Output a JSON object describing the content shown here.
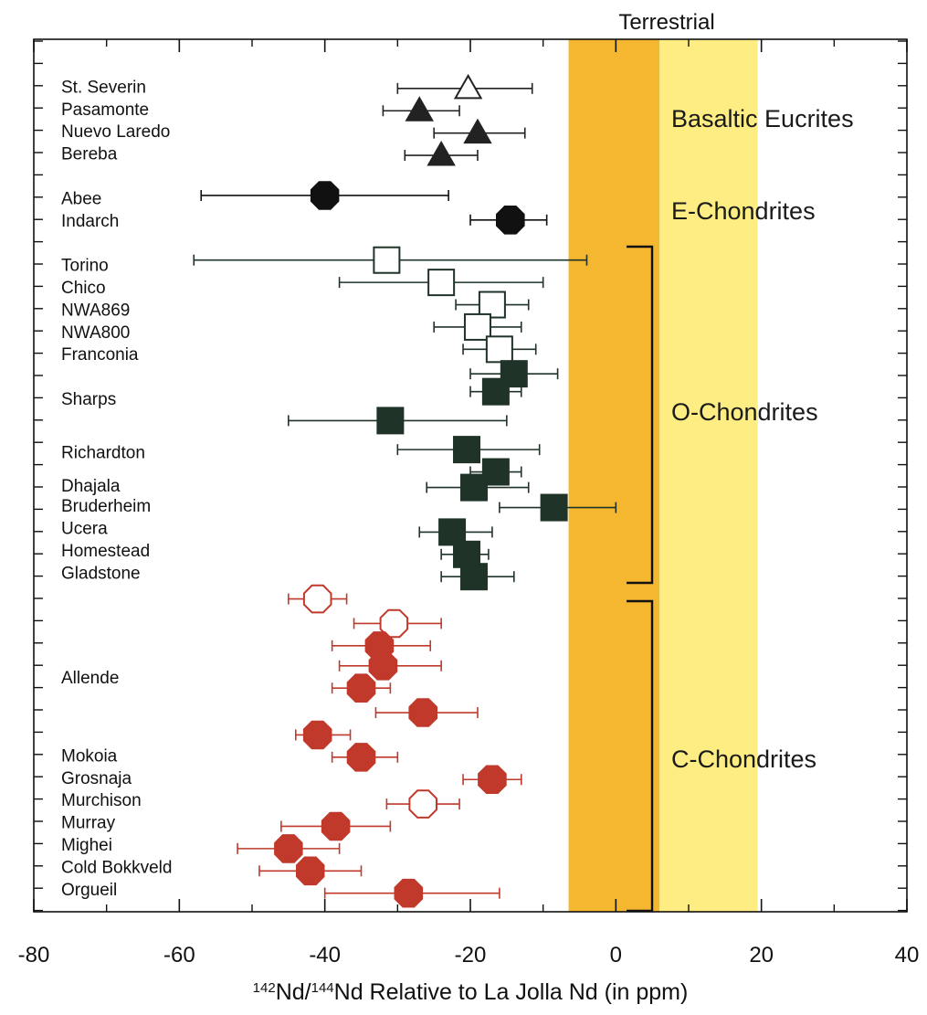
{
  "chart_data": {
    "type": "scatter",
    "title": "",
    "xlabel_prefix_mass1": "142",
    "xlabel_mid": "Nd/",
    "xlabel_prefix_mass2": "144",
    "xlabel_rest": "Nd Relative to La Jolla Nd (in ppm)",
    "xlim": [
      -80,
      40
    ],
    "x_ticks": [
      -80,
      -60,
      -40,
      -20,
      0,
      20,
      40
    ],
    "grid": false,
    "bands": [
      {
        "x_from": -6.5,
        "x_to": 6,
        "color": "#f5b730",
        "label": "Terrestrial"
      },
      {
        "x_from": 6,
        "x_to": 19.5,
        "color": "#fded83",
        "label": ""
      }
    ],
    "group_labels": [
      "Basaltic Eucrites",
      "E-Chondrites",
      "O-Chondrites",
      "C-Chondrites"
    ],
    "sample_labels": [
      {
        "text": "St. Severin",
        "row": 1
      },
      {
        "text": "Pasamonte",
        "row": 2
      },
      {
        "text": "Nuevo Laredo",
        "row": 3
      },
      {
        "text": "Bereba",
        "row": 4
      },
      {
        "text": "Abee",
        "row": 6
      },
      {
        "text": "Indarch",
        "row": 7
      },
      {
        "text": "Torino",
        "row": 9
      },
      {
        "text": "Chico",
        "row": 10
      },
      {
        "text": "NWA869",
        "row": 11
      },
      {
        "text": "NWA800",
        "row": 12
      },
      {
        "text": "Franconia",
        "row": 13
      },
      {
        "text": "Sharps",
        "row": 15
      },
      {
        "text": "Richardton",
        "row": 17.4
      },
      {
        "text": "Dhajala",
        "row": 18.9
      },
      {
        "text": "Bruderheim",
        "row": 19.8
      },
      {
        "text": "Ucera",
        "row": 20.8
      },
      {
        "text": "Homestead",
        "row": 21.8
      },
      {
        "text": "Gladstone",
        "row": 22.8
      },
      {
        "text": "Allende",
        "row": 27.5
      },
      {
        "text": "Mokoia",
        "row": 31
      },
      {
        "text": "Grosnaja",
        "row": 32
      },
      {
        "text": "Murchison",
        "row": 33
      },
      {
        "text": "Murray",
        "row": 34
      },
      {
        "text": "Mighei",
        "row": 35
      },
      {
        "text": "Cold Bokkveld",
        "row": 36
      },
      {
        "text": "Orgueil",
        "row": 37
      }
    ],
    "series": [
      {
        "group": "Basaltic Eucrites",
        "marker": "triangle",
        "color": "#222222",
        "points": [
          {
            "row": 1.1,
            "x": -20.3,
            "lo": -30,
            "hi": -11.5,
            "filled": false
          },
          {
            "row": 2.1,
            "x": -27,
            "lo": -32,
            "hi": -21.5,
            "filled": true
          },
          {
            "row": 3.1,
            "x": -19,
            "lo": -25,
            "hi": -12.5,
            "filled": true
          },
          {
            "row": 4.1,
            "x": -24,
            "lo": -29,
            "hi": -19,
            "filled": true
          }
        ]
      },
      {
        "group": "E-Chondrites",
        "marker": "octagon",
        "color": "#111111",
        "points": [
          {
            "row": 5.9,
            "x": -40,
            "lo": -57,
            "hi": -23,
            "filled": true
          },
          {
            "row": 7.0,
            "x": -14.5,
            "lo": -20,
            "hi": -9.5,
            "filled": true
          }
        ]
      },
      {
        "group": "O-Chondrites",
        "marker": "square",
        "color": "#1f3328",
        "points": [
          {
            "row": 8.8,
            "x": -31.5,
            "lo": -58,
            "hi": -4,
            "filled": false
          },
          {
            "row": 9.8,
            "x": -24,
            "lo": -38,
            "hi": -10,
            "filled": false
          },
          {
            "row": 10.8,
            "x": -17,
            "lo": -22,
            "hi": -12,
            "filled": false
          },
          {
            "row": 11.8,
            "x": -19,
            "lo": -25,
            "hi": -13,
            "filled": false
          },
          {
            "row": 12.8,
            "x": -16,
            "lo": -21,
            "hi": -11,
            "filled": false
          },
          {
            "row": 13.9,
            "x": -14,
            "lo": -20,
            "hi": -8,
            "filled": true
          },
          {
            "row": 14.7,
            "x": -16.5,
            "lo": -20,
            "hi": -13,
            "filled": true
          },
          {
            "row": 16.0,
            "x": -31,
            "lo": -45,
            "hi": -15,
            "filled": true
          },
          {
            "row": 17.3,
            "x": -20.5,
            "lo": -30,
            "hi": -10.5,
            "filled": true
          },
          {
            "row": 18.3,
            "x": -16.5,
            "lo": -20,
            "hi": -13,
            "filled": true
          },
          {
            "row": 19.0,
            "x": -19.5,
            "lo": -26,
            "hi": -12,
            "filled": true
          },
          {
            "row": 19.9,
            "x": -8.5,
            "lo": -16,
            "hi": 0,
            "filled": true
          },
          {
            "row": 21.0,
            "x": -22.5,
            "lo": -27,
            "hi": -17,
            "filled": true
          },
          {
            "row": 22.0,
            "x": -20.5,
            "lo": -24,
            "hi": -17.5,
            "filled": true
          },
          {
            "row": 23.0,
            "x": -19.5,
            "lo": -24,
            "hi": -14,
            "filled": true
          }
        ]
      },
      {
        "group": "C-Chondrites",
        "marker": "octagon",
        "color": "#c0392b",
        "points": [
          {
            "row": 24.0,
            "x": -41,
            "lo": -45,
            "hi": -37,
            "filled": false
          },
          {
            "row": 25.1,
            "x": -30.5,
            "lo": -36,
            "hi": -24,
            "filled": false
          },
          {
            "row": 26.1,
            "x": -32.5,
            "lo": -39,
            "hi": -25.5,
            "filled": true
          },
          {
            "row": 27.0,
            "x": -32,
            "lo": -38,
            "hi": -24,
            "filled": true
          },
          {
            "row": 28.0,
            "x": -35,
            "lo": -39,
            "hi": -31,
            "filled": true
          },
          {
            "row": 29.1,
            "x": -26.5,
            "lo": -33,
            "hi": -19,
            "filled": true
          },
          {
            "row": 30.1,
            "x": -41,
            "lo": -44,
            "hi": -36.5,
            "filled": true
          },
          {
            "row": 31.1,
            "x": -35,
            "lo": -39,
            "hi": -30,
            "filled": true
          },
          {
            "row": 32.1,
            "x": -17,
            "lo": -21,
            "hi": -13,
            "filled": true
          },
          {
            "row": 33.2,
            "x": -26.5,
            "lo": -31.5,
            "hi": -21.5,
            "filled": false
          },
          {
            "row": 34.2,
            "x": -38.5,
            "lo": -46,
            "hi": -31,
            "filled": true
          },
          {
            "row": 35.2,
            "x": -45,
            "lo": -52,
            "hi": -38,
            "filled": true
          },
          {
            "row": 36.2,
            "x": -42,
            "lo": -49,
            "hi": -35,
            "filled": true
          },
          {
            "row": 37.2,
            "x": -28.5,
            "lo": -40,
            "hi": -16,
            "filled": true
          }
        ]
      }
    ]
  }
}
